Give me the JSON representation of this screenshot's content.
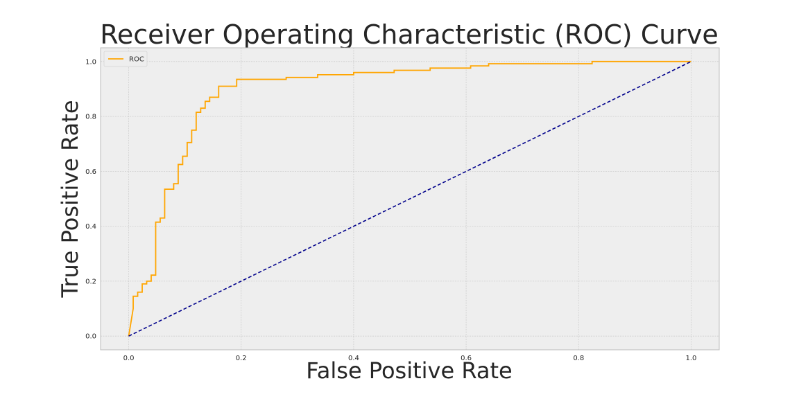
{
  "chart_data": {
    "type": "line",
    "title": "Receiver Operating Characteristic (ROC) Curve",
    "xlabel": "False Positive Rate",
    "ylabel": "True Positive Rate",
    "xlim": [
      -0.05,
      1.05
    ],
    "ylim": [
      -0.05,
      1.05
    ],
    "xticks": [
      0.0,
      0.2,
      0.4,
      0.6,
      0.8,
      1.0
    ],
    "yticks": [
      0.0,
      0.2,
      0.4,
      0.6,
      0.8,
      1.0
    ],
    "xtick_labels": [
      "0.0",
      "0.2",
      "0.4",
      "0.6",
      "0.8",
      "1.0"
    ],
    "ytick_labels": [
      "0.0",
      "0.2",
      "0.4",
      "0.6",
      "0.8",
      "1.0"
    ],
    "grid": true,
    "legend_position": "top-left",
    "series": [
      {
        "name": "ROC",
        "color": "#ffa500",
        "style": "solid",
        "step": true,
        "x": [
          0.0,
          0.008,
          0.008,
          0.016,
          0.016,
          0.024,
          0.024,
          0.032,
          0.032,
          0.04,
          0.04,
          0.048,
          0.048,
          0.056,
          0.056,
          0.064,
          0.064,
          0.08,
          0.08,
          0.088,
          0.088,
          0.096,
          0.096,
          0.104,
          0.104,
          0.112,
          0.112,
          0.12,
          0.12,
          0.128,
          0.128,
          0.136,
          0.136,
          0.144,
          0.144,
          0.152,
          0.152,
          0.16,
          0.16,
          0.192,
          0.192,
          0.2,
          0.2,
          0.28,
          0.28,
          0.336,
          0.336,
          0.4,
          0.4,
          0.472,
          0.472,
          0.536,
          0.536,
          0.608,
          0.608,
          0.64,
          0.64,
          0.824,
          0.824,
          1.0
        ],
        "y": [
          0.0,
          0.1,
          0.145,
          0.145,
          0.16,
          0.16,
          0.19,
          0.19,
          0.2,
          0.2,
          0.222,
          0.222,
          0.415,
          0.415,
          0.43,
          0.43,
          0.535,
          0.535,
          0.555,
          0.555,
          0.625,
          0.625,
          0.655,
          0.655,
          0.705,
          0.705,
          0.75,
          0.75,
          0.815,
          0.815,
          0.83,
          0.83,
          0.855,
          0.855,
          0.87,
          0.87,
          0.87,
          0.87,
          0.91,
          0.91,
          0.935,
          0.935,
          0.935,
          0.935,
          0.942,
          0.942,
          0.952,
          0.952,
          0.96,
          0.96,
          0.968,
          0.968,
          0.976,
          0.976,
          0.984,
          0.984,
          0.992,
          0.992,
          1.0,
          1.0
        ]
      },
      {
        "name": "",
        "color": "#00008b",
        "style": "dashed",
        "x": [
          0.0,
          1.0
        ],
        "y": [
          0.0,
          1.0
        ]
      }
    ]
  }
}
